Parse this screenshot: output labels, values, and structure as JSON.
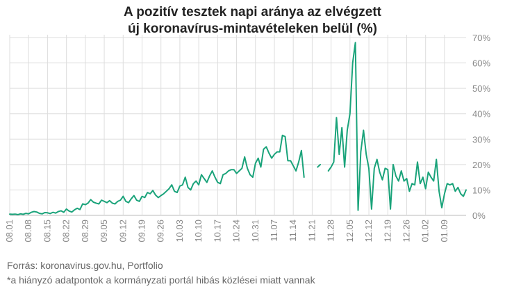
{
  "title_lines": [
    "A pozitív tesztek napi aránya az elvégzett",
    "új koronavírus-mintavételeken belül (%)"
  ],
  "footer": {
    "source": "Forrás: koronavirus.gov.hu, Portfolio",
    "note": "*a hiányzó adatpontok a kormányzati portál hibás közlései miatt vannak"
  },
  "colors": {
    "line": "#1aa37a",
    "grid": "#dddddd",
    "axis": "#bbbbbb",
    "tick_text": "#888888"
  },
  "chart_data": {
    "type": "line",
    "x_start": "2020-08-01",
    "x_tick_labels": [
      "08.01",
      "08.08",
      "08.15",
      "08.22",
      "08.29",
      "09.05",
      "09.12",
      "09.19",
      "09.26",
      "10.03",
      "10.10",
      "10.17",
      "10.24",
      "10.31",
      "11.07",
      "11.14",
      "11.21",
      "11.28",
      "12.05",
      "12.12",
      "12.19",
      "12.26",
      "01.02",
      "01.09"
    ],
    "y_tick_labels": [
      "0%",
      "10%",
      "20%",
      "30%",
      "40%",
      "50%",
      "60%",
      "70%"
    ],
    "ylim": [
      0,
      70
    ],
    "grid": true,
    "series": [
      {
        "values": [
          0.5,
          0.4,
          0.5,
          0.3,
          0.6,
          0.4,
          0.8,
          0.6,
          1.2,
          1.5,
          1.3,
          0.8,
          0.6,
          1.1,
          1.0,
          0.7,
          1.2,
          0.9,
          1.5,
          1.8,
          1.2,
          2.5,
          1.7,
          1.3,
          2.2,
          2.8,
          2.3,
          4.5,
          4.2,
          4.8,
          6.2,
          5.2,
          4.8,
          4.5,
          6.0,
          5.5,
          5.0,
          5.8,
          4.8,
          4.5,
          5.5,
          6.0,
          7.5,
          5.5,
          5.0,
          6.5,
          7.8,
          6.0,
          5.5,
          7.5,
          7.0,
          9.0,
          8.5,
          9.8,
          8.0,
          7.0,
          7.8,
          8.5,
          9.5,
          10.5,
          12.0,
          9.5,
          9.0,
          11.5,
          12.0,
          15.0,
          11.0,
          10.0,
          12.5,
          13.5,
          12.0,
          16.0,
          14.5,
          13.0,
          15.5,
          17.5,
          15.0,
          13.0,
          12.5,
          16.0,
          16.5,
          17.5,
          18.0,
          18.0,
          16.5,
          17.5,
          18.5,
          23.0,
          18.5,
          16.0,
          15.0,
          20.5,
          22.5,
          19.0,
          26.0,
          27.0,
          24.5,
          22.5,
          24.0,
          25.0,
          25.0,
          31.5,
          31.0,
          21.5,
          21.5,
          19.5,
          17.5,
          21.0,
          25.5,
          15.0,
          null,
          null,
          null,
          null,
          19.0,
          20.0,
          null,
          null,
          17.5,
          19.0,
          21.0,
          38.5,
          24.0,
          34.5,
          19.0,
          33.5,
          40.0,
          60.0,
          68.0,
          2.0,
          25.0,
          33.5,
          24.0,
          18.5,
          2.5,
          18.5,
          22.0,
          17.0,
          14.0,
          18.5,
          18.0,
          2.5,
          20.0,
          15.5,
          13.5,
          17.5,
          13.5,
          14.5,
          9.5,
          12.5,
          12.0,
          21.0,
          12.5,
          15.0,
          10.5,
          17.0,
          15.0,
          13.5,
          22.0,
          9.5,
          3.0,
          8.5,
          12.5,
          12.0,
          12.5,
          9.5,
          11.0,
          8.5,
          7.5,
          10.0
        ]
      }
    ]
  }
}
